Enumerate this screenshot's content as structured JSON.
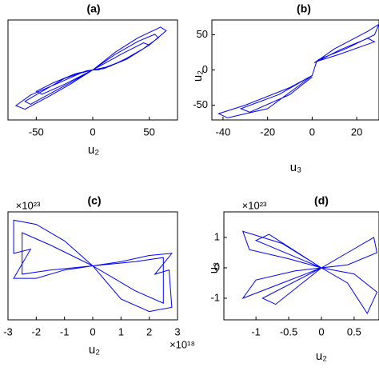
{
  "chart_data": [
    {
      "type": "line",
      "title": "(a)",
      "xlabel": "u₂",
      "xlim": [
        -75,
        75
      ],
      "ylim": [
        -70,
        70
      ],
      "xticks": [
        -50,
        0,
        50
      ],
      "series": [
        {
          "color": "#0000ff",
          "x": [
            0,
            20,
            40,
            60,
            65,
            50,
            30,
            10,
            0,
            20,
            40,
            55,
            58,
            45,
            25,
            5,
            0,
            25,
            45,
            50,
            35,
            15,
            0,
            -20,
            -40,
            -60,
            -68,
            -55,
            -30,
            -10,
            0,
            -20,
            -40,
            -55,
            -60,
            -45,
            -25,
            -5,
            0,
            -25,
            -45,
            -50,
            -35,
            -15,
            0
          ],
          "y": [
            0,
            25,
            45,
            60,
            55,
            35,
            15,
            2,
            0,
            22,
            40,
            50,
            45,
            30,
            12,
            0,
            0,
            22,
            38,
            35,
            20,
            5,
            0,
            -20,
            -38,
            -55,
            -50,
            -35,
            -18,
            -4,
            0,
            -18,
            -35,
            -48,
            -44,
            -30,
            -12,
            -1,
            0,
            -20,
            -34,
            -30,
            -18,
            -5,
            0
          ]
        }
      ]
    },
    {
      "type": "line",
      "title": "(b)",
      "xlabel": "u₃",
      "ylabel": "u₂",
      "xlim": [
        -45,
        30
      ],
      "ylim": [
        -71,
        71
      ],
      "xticks": [
        -40,
        -20,
        0,
        20
      ],
      "yticks": [
        -50,
        0,
        50
      ],
      "series": [
        {
          "color": "#0000ff",
          "x": [
            1,
            10,
            25,
            30,
            28,
            15,
            3,
            1,
            12,
            25,
            28,
            12,
            2,
            0,
            -10,
            -30,
            -42,
            -38,
            -20,
            -5,
            0,
            -15,
            -32,
            -28,
            -10,
            0
          ],
          "y": [
            10,
            30,
            55,
            65,
            50,
            30,
            15,
            10,
            28,
            45,
            40,
            22,
            12,
            -8,
            -25,
            -50,
            -62,
            -68,
            -55,
            -20,
            -8,
            -35,
            -55,
            -60,
            -35,
            -10
          ]
        }
      ]
    },
    {
      "type": "line",
      "title": "(c)",
      "xlabel": "u₂",
      "xexp": "×10¹⁸",
      "yexp": "×10²³",
      "xlim": [
        -3,
        3
      ],
      "ylim": [
        -1.3,
        1.3
      ],
      "xticks": [
        -3,
        -2,
        -1,
        0,
        1,
        2,
        3
      ],
      "series": [
        {
          "color": "#0000ff",
          "x": [
            0,
            -1,
            -2,
            -2.8,
            -2.8,
            -2.2,
            -2.8,
            -2,
            -1,
            0,
            1,
            2,
            2.8,
            2.7,
            2.2,
            2.8,
            2,
            1,
            0,
            -1.5,
            -2.5,
            -2.5,
            -1.5,
            0,
            1.5,
            2.5,
            2.5,
            1.5,
            0
          ],
          "y": [
            0,
            0.6,
            1.0,
            1.1,
            0.3,
            0.4,
            -0.3,
            -0.3,
            -0.1,
            0,
            -0.8,
            -1.1,
            -1.0,
            -0.1,
            -0.2,
            0.3,
            0.25,
            0.1,
            0,
            0.5,
            0.8,
            -0.2,
            -0.1,
            0,
            -0.6,
            -0.9,
            0.2,
            0.1,
            0
          ]
        }
      ]
    },
    {
      "type": "line",
      "title": "(d)",
      "xlabel": "u₂",
      "ylabel": "u₃",
      "yexp": "×10²³",
      "xlim": [
        -1.49,
        0.88
      ],
      "ylim": [
        -1.71,
        1.84
      ],
      "xticks": [
        -1,
        -0.5,
        0,
        0.5
      ],
      "yticks": [
        -1,
        0,
        1
      ],
      "series": [
        {
          "color": "#0000ff",
          "x": [
            0,
            -0.6,
            -1.2,
            -1.1,
            -0.5,
            0,
            -0.6,
            -1.2,
            -1.0,
            -0.4,
            0,
            0.4,
            0.8,
            0.85,
            0.4,
            0,
            0.4,
            0.7,
            0.85,
            0.5,
            0,
            -0.8,
            -1.0,
            0,
            -0.9,
            -0.7,
            0
          ],
          "y": [
            0,
            0.8,
            1.2,
            0.6,
            0.3,
            0,
            -0.5,
            -1.0,
            -0.4,
            -0.1,
            0,
            0.5,
            1.0,
            0.5,
            0.1,
            0,
            -0.5,
            -1.5,
            -0.8,
            -0.2,
            0,
            1.1,
            0.9,
            0,
            -1.0,
            -1.2,
            0
          ]
        }
      ]
    }
  ]
}
